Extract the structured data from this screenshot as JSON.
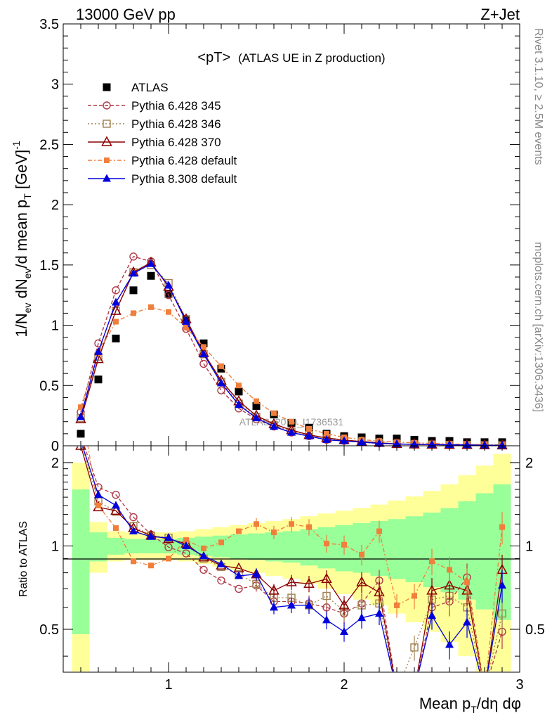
{
  "header": {
    "left": "13000 GeV pp",
    "right": "Z+Jet"
  },
  "side_labels": {
    "rivet": "Rivet 3.1.10, ≥ 2.5M events",
    "mcplots": "mcplots.cern.ch [arXiv:1306.3436]"
  },
  "chart_data": [
    {
      "type": "scatter",
      "title": "<pT> (ATLAS UE in Z production)",
      "title_main": "<pT>",
      "title_sub": "(ATLAS UE in Z production)",
      "ylabel": "1/N_ev dN_ev/d mean p_T [GeV]^-1",
      "watermark": "ATLAS_2019_I1736531",
      "xlim": [
        0.4,
        3.0
      ],
      "ylim": [
        0,
        3.5
      ],
      "yticks": [
        "0",
        "0.5",
        "1",
        "1.5",
        "2",
        "2.5",
        "3",
        "3.5"
      ],
      "x": [
        0.5,
        0.6,
        0.7,
        0.8,
        0.9,
        1.0,
        1.1,
        1.2,
        1.3,
        1.4,
        1.5,
        1.6,
        1.7,
        1.8,
        1.9,
        2.0,
        2.1,
        2.2,
        2.3,
        2.4,
        2.5,
        2.6,
        2.7,
        2.8,
        2.9
      ],
      "legend": [
        "ATLAS",
        "Pythia 6.428 345",
        "Pythia 6.428 346",
        "Pythia 6.428 370",
        "Pythia 6.428 default",
        "Pythia 8.308 default"
      ],
      "series": [
        {
          "name": "ATLAS",
          "color": "#000000",
          "marker": "square-filled",
          "values": [
            0.1,
            0.55,
            0.89,
            1.29,
            1.41,
            1.26,
            1.04,
            0.85,
            0.64,
            0.45,
            0.33,
            0.26,
            0.19,
            0.15,
            0.1,
            0.08,
            0.07,
            0.06,
            0.06,
            0.05,
            0.04,
            0.04,
            0.03,
            0.03,
            0.03
          ]
        },
        {
          "name": "Pythia 6.428 345",
          "color": "#b03a48",
          "marker": "circle-open",
          "dash": "5,3",
          "values": [
            0.28,
            0.85,
            1.29,
            1.57,
            1.53,
            1.25,
            0.97,
            0.68,
            0.46,
            0.31,
            0.22,
            0.16,
            0.11,
            0.08,
            0.05,
            0.04,
            0.03,
            0.02,
            0.015,
            0.01,
            0.01,
            0.01,
            0.008,
            0.006,
            0.005
          ]
        },
        {
          "name": "Pythia 6.428 346",
          "color": "#a08050",
          "marker": "square-open",
          "dash": "2,3",
          "values": [
            0.23,
            0.74,
            1.12,
            1.44,
            1.5,
            1.35,
            1.05,
            0.76,
            0.53,
            0.35,
            0.24,
            0.17,
            0.12,
            0.09,
            0.06,
            0.045,
            0.035,
            0.025,
            0.015,
            0.012,
            0.01,
            0.008,
            0.007,
            0.005,
            0.004
          ]
        },
        {
          "name": "Pythia 6.428 370",
          "color": "#8b0000",
          "marker": "triangle-open",
          "dash": "",
          "values": [
            0.22,
            0.72,
            1.12,
            1.44,
            1.52,
            1.32,
            1.05,
            0.77,
            0.54,
            0.37,
            0.25,
            0.18,
            0.13,
            0.09,
            0.065,
            0.048,
            0.035,
            0.025,
            0.015,
            0.012,
            0.01,
            0.008,
            0.007,
            0.005,
            0.004
          ]
        },
        {
          "name": "Pythia 6.428 default",
          "color": "#f07f3c",
          "marker": "square-filled-small",
          "dash": "6,3,2,3",
          "values": [
            0.32,
            0.77,
            1.03,
            1.1,
            1.15,
            1.11,
            0.98,
            0.82,
            0.66,
            0.5,
            0.37,
            0.27,
            0.2,
            0.14,
            0.1,
            0.07,
            0.05,
            0.04,
            0.03,
            0.025,
            0.02,
            0.015,
            0.012,
            0.01,
            0.008
          ]
        },
        {
          "name": "Pythia 8.308 default",
          "color": "#0000dd",
          "marker": "triangle-filled",
          "dash": "",
          "values": [
            0.24,
            0.78,
            1.19,
            1.43,
            1.51,
            1.33,
            1.03,
            0.76,
            0.52,
            0.34,
            0.23,
            0.16,
            0.11,
            0.08,
            0.05,
            0.04,
            0.03,
            0.02,
            0.015,
            0.012,
            0.01,
            0.008,
            0.007,
            0.005,
            0.004
          ]
        }
      ]
    },
    {
      "type": "line",
      "ylabel": "Ratio to ATLAS",
      "xlabel": "Mean p_T/dη dφ",
      "xlim": [
        0.4,
        3.0
      ],
      "ylim": [
        0.35,
        2.3
      ],
      "log_y": true,
      "xticks": [
        "1",
        "2",
        "3"
      ],
      "yticks": [
        "0.5",
        "1",
        "2"
      ],
      "x": [
        0.5,
        0.6,
        0.7,
        0.8,
        0.9,
        1.0,
        1.1,
        1.2,
        1.3,
        1.4,
        1.5,
        1.6,
        1.7,
        1.8,
        1.9,
        2.0,
        2.1,
        2.2,
        2.3,
        2.4,
        2.5,
        2.6,
        2.7,
        2.8,
        2.9
      ],
      "bands": {
        "green_colour": "#99ff99",
        "yellow_colour": "#ffff99",
        "green_hi": [
          1.6,
          1.12,
          1.07,
          1.06,
          1.06,
          1.06,
          1.07,
          1.08,
          1.09,
          1.1,
          1.11,
          1.12,
          1.13,
          1.15,
          1.17,
          1.19,
          1.21,
          1.23,
          1.25,
          1.28,
          1.32,
          1.37,
          1.45,
          1.55,
          1.67
        ],
        "green_lo": [
          0.48,
          0.88,
          0.93,
          0.94,
          0.94,
          0.94,
          0.93,
          0.92,
          0.91,
          0.9,
          0.89,
          0.88,
          0.87,
          0.85,
          0.83,
          0.81,
          0.8,
          0.78,
          0.76,
          0.74,
          0.71,
          0.68,
          0.64,
          0.59,
          0.54
        ],
        "yellow_hi": [
          2.0,
          1.22,
          1.13,
          1.12,
          1.12,
          1.12,
          1.13,
          1.15,
          1.17,
          1.19,
          1.21,
          1.23,
          1.25,
          1.28,
          1.31,
          1.34,
          1.37,
          1.41,
          1.46,
          1.51,
          1.58,
          1.67,
          1.8,
          1.95,
          2.15
        ],
        "yellow_lo": [
          0.3,
          0.8,
          0.88,
          0.89,
          0.89,
          0.89,
          0.88,
          0.86,
          0.84,
          0.82,
          0.8,
          0.78,
          0.76,
          0.73,
          0.7,
          0.67,
          0.64,
          0.61,
          0.57,
          0.53,
          0.49,
          0.45,
          0.4,
          0.35,
          0.3
        ]
      },
      "series": [
        {
          "name": "Pythia 6.428 345",
          "color": "#b03a48",
          "marker": "circle-open",
          "dash": "5,3",
          "values": [
            2.5,
            1.63,
            1.53,
            1.27,
            1.1,
            0.99,
            0.94,
            0.82,
            0.75,
            0.7,
            0.72,
            0.63,
            0.63,
            0.62,
            0.6,
            0.57,
            0.62,
            0.75,
            0.3,
            0.3,
            0.6,
            0.63,
            0.77,
            0.3,
            0.49
          ]
        },
        {
          "name": "Pythia 6.428 346",
          "color": "#a08050",
          "marker": "square-open",
          "dash": "2,3",
          "values": [
            2.4,
            1.45,
            1.33,
            1.18,
            1.09,
            1.07,
            1.01,
            0.9,
            0.84,
            0.79,
            0.73,
            0.65,
            0.65,
            0.61,
            0.66,
            0.58,
            0.61,
            0.62,
            0.3,
            0.43,
            0.64,
            0.66,
            0.6,
            0.3,
            0.57
          ]
        },
        {
          "name": "Pythia 6.428 370",
          "color": "#8b0000",
          "marker": "triangle-open",
          "dash": "",
          "values": [
            2.3,
            1.38,
            1.34,
            1.16,
            1.09,
            1.06,
            1.02,
            0.91,
            0.85,
            0.83,
            0.79,
            0.69,
            0.74,
            0.73,
            0.76,
            0.61,
            0.74,
            0.68,
            0.3,
            0.3,
            0.69,
            0.72,
            0.69,
            0.3,
            0.82
          ]
        },
        {
          "name": "Pythia 6.428 default",
          "color": "#f07f3c",
          "marker": "square-filled-small",
          "dash": "6,3,2,3",
          "values": [
            3.2,
            1.4,
            1.16,
            0.88,
            0.85,
            0.9,
            1.05,
            0.98,
            1.03,
            1.13,
            1.2,
            1.12,
            1.2,
            1.17,
            1.02,
            1.01,
            0.93,
            1.13,
            0.61,
            0.66,
            0.88,
            0.82,
            0.74,
            0.3,
            1.17
          ]
        },
        {
          "name": "Pythia 8.308 default",
          "color": "#0000dd",
          "marker": "triangle-filled",
          "dash": "",
          "values": [
            2.4,
            1.53,
            1.4,
            1.13,
            1.08,
            1.07,
            1.0,
            0.92,
            0.86,
            0.78,
            0.79,
            0.6,
            0.61,
            0.61,
            0.54,
            0.49,
            0.55,
            0.57,
            0.3,
            0.3,
            0.56,
            0.44,
            0.53,
            0.3,
            0.72
          ]
        }
      ]
    }
  ]
}
